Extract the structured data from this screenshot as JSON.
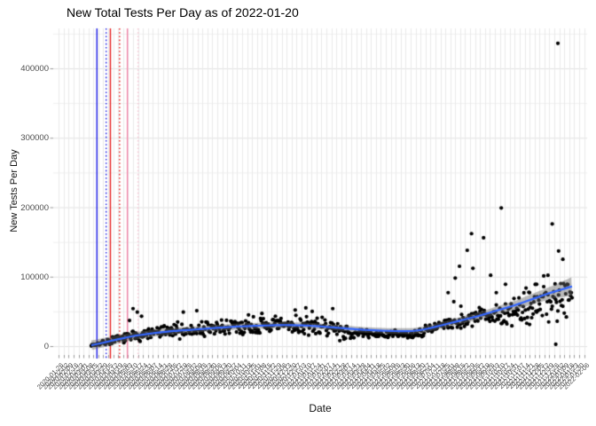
{
  "chart_data": {
    "type": "scatter",
    "title": "New Total Tests Per Day as of 2022-01-20",
    "xlabel": "Date",
    "ylabel": "New Tests Per Day",
    "legend": "none",
    "grid": true,
    "background": "#ffffff",
    "point_color": "#000000",
    "smooth_line_color": "#3366FF",
    "smooth_band_color": "rgba(102,102,102,0.45)",
    "grid_major_color": "#e2e2e2",
    "grid_minor_color": "#f0f0f0",
    "grid_vertical_color": "#eaeaea",
    "axis_text_color": "#4d4d4d",
    "tick_mark_color": "#999999",
    "x_start_date": "2020-01-22",
    "x_end_date": "2022-01-20",
    "x_domain_days": 750,
    "y_ticks": [
      0,
      100000,
      200000,
      300000,
      400000
    ],
    "y_minor_step": 50000,
    "ylim": [
      0,
      450000
    ],
    "x_tick_labels": {
      "first_date": "2020-01-26",
      "step_days": 7,
      "count": 107,
      "rotation_deg": 45
    },
    "reference_lines": [
      {
        "day": 58,
        "color": "#1a1ae6",
        "style": "solid"
      },
      {
        "day": 71,
        "color": "#1a1ae6",
        "style": "dotted"
      },
      {
        "day": 77,
        "color": "#e62020",
        "style": "solid"
      },
      {
        "day": 90,
        "color": "#e62020",
        "style": "dotted"
      },
      {
        "day": 101,
        "color": "#f285a8",
        "style": "solid"
      },
      {
        "day": 116,
        "color": "#f8c6d4",
        "style": "dotted"
      }
    ],
    "data_day_range": [
      50,
      729
    ],
    "smooth_trend": [
      [
        50,
        1200
      ],
      [
        65,
        4500
      ],
      [
        84,
        9000
      ],
      [
        109,
        14500
      ],
      [
        140,
        19000
      ],
      [
        172,
        22300
      ],
      [
        190,
        23400
      ],
      [
        222,
        26000
      ],
      [
        253,
        28000
      ],
      [
        284,
        29300
      ],
      [
        322,
        30400
      ],
      [
        359,
        29500
      ],
      [
        397,
        26500
      ],
      [
        435,
        23400
      ],
      [
        472,
        21800
      ],
      [
        503,
        21500
      ],
      [
        522,
        24300
      ],
      [
        547,
        30600
      ],
      [
        572,
        37000
      ],
      [
        597,
        43400
      ],
      [
        622,
        51000
      ],
      [
        648,
        58700
      ],
      [
        673,
        67700
      ],
      [
        698,
        76600
      ],
      [
        729,
        86000
      ]
    ],
    "band_halfwidth": [
      [
        50,
        7000
      ],
      [
        100,
        5500
      ],
      [
        200,
        4300
      ],
      [
        300,
        4300
      ],
      [
        400,
        4000
      ],
      [
        470,
        4000
      ],
      [
        540,
        4500
      ],
      [
        600,
        5200
      ],
      [
        650,
        6500
      ],
      [
        700,
        9000
      ],
      [
        729,
        13500
      ]
    ],
    "noise_segments": [
      [
        50,
        90,
        0.85
      ],
      [
        90,
        140,
        0.6
      ],
      [
        140,
        300,
        0.55
      ],
      [
        300,
        420,
        0.5
      ],
      [
        420,
        520,
        0.27
      ],
      [
        520,
        640,
        0.35
      ],
      [
        640,
        729,
        0.5
      ]
    ],
    "bias_segments": [
      [
        400,
        520,
        -0.22
      ],
      [
        620,
        729,
        -0.12
      ]
    ],
    "weekday_factors": [
      0.82,
      0.9,
      1.0,
      1.08,
      1.05,
      1.0,
      1.0
    ],
    "noise_seed": 7,
    "outliers": [
      [
        104,
        37000
      ],
      [
        109,
        54000
      ],
      [
        115,
        49000
      ],
      [
        121,
        43000
      ],
      [
        180,
        49000
      ],
      [
        199,
        51000
      ],
      [
        272,
        45000
      ],
      [
        338,
        52000
      ],
      [
        353,
        55000
      ],
      [
        362,
        50000
      ],
      [
        391,
        54000
      ],
      [
        554,
        77000
      ],
      [
        562,
        64000
      ],
      [
        564,
        98000
      ],
      [
        570,
        115000
      ],
      [
        572,
        57500
      ],
      [
        581,
        138000
      ],
      [
        587,
        162000
      ],
      [
        589,
        112000
      ],
      [
        604,
        156000
      ],
      [
        614,
        102000
      ],
      [
        622,
        77000
      ],
      [
        629,
        199000
      ],
      [
        635,
        89000
      ],
      [
        669,
        77000
      ],
      [
        679,
        89000
      ],
      [
        689,
        85600
      ],
      [
        695,
        102000
      ],
      [
        701,
        176000
      ],
      [
        706,
        2600
      ],
      [
        709,
        436000
      ],
      [
        710,
        137000
      ],
      [
        716,
        125000
      ]
    ]
  }
}
